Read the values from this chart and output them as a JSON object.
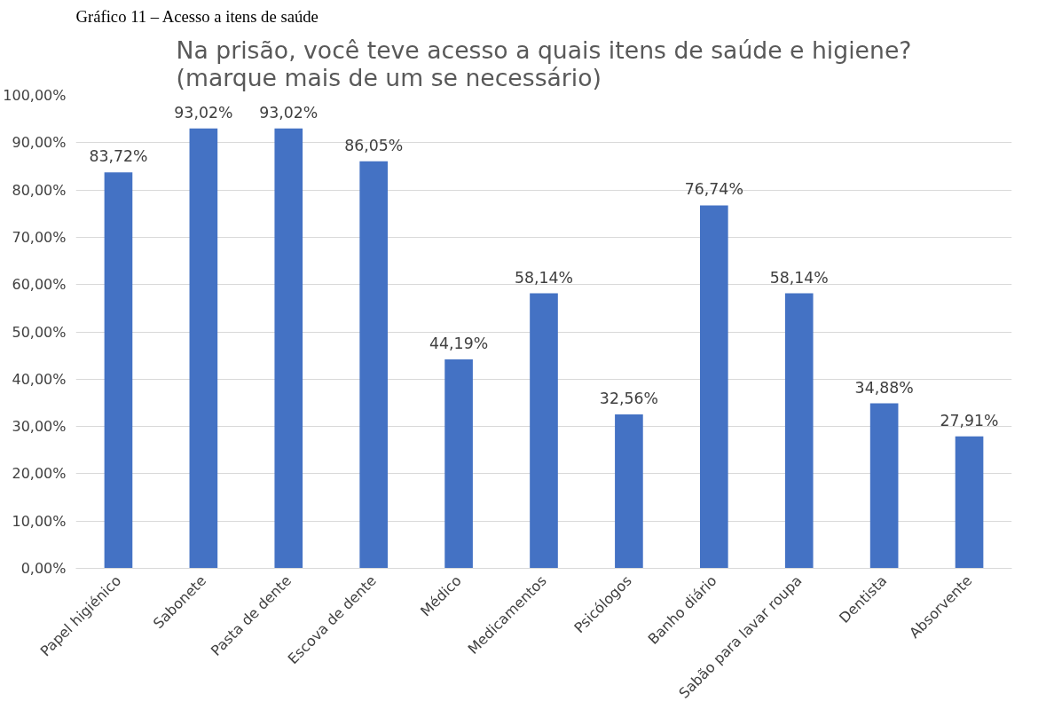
{
  "chart_data": {
    "type": "bar",
    "title": "Na prisão, você teve acesso a quais itens de saúde e higiene?\n(marque mais de um se necessário)",
    "annotations": [
      "Gráfico 11 – Acesso a itens de saúde"
    ],
    "categories": [
      "Papel higiénico",
      "Sabonete",
      "Pasta de dente",
      "Escova de dente",
      "Médico",
      "Medicamentos",
      "Psicólogos",
      "Banho diário",
      "Sabão para lavar roupa",
      "Dentista",
      "Absorvente"
    ],
    "values": [
      83.72,
      93.02,
      93.02,
      86.05,
      44.19,
      58.14,
      32.56,
      76.74,
      58.14,
      34.88,
      27.91
    ],
    "value_labels": [
      "83,72%",
      "93,02%",
      "93,02%",
      "86,05%",
      "44,19%",
      "58,14%",
      "32,56%",
      "76,74%",
      "58,14%",
      "34,88%",
      "27,91%"
    ],
    "color": "#4472c4",
    "ylim": [
      0,
      100
    ],
    "yticks": [
      {
        "value": 0,
        "label": "0,00%"
      },
      {
        "value": 10,
        "label": "10,00%"
      },
      {
        "value": 20,
        "label": "20,00%"
      },
      {
        "value": 30,
        "label": "30,00%"
      },
      {
        "value": 40,
        "label": "40,00%"
      },
      {
        "value": 50,
        "label": "50,00%"
      },
      {
        "value": 60,
        "label": "60,00%"
      },
      {
        "value": 70,
        "label": "70,00%"
      },
      {
        "value": 80,
        "label": "80,00%"
      },
      {
        "value": 90,
        "label": "90,00%"
      },
      {
        "value": 100,
        "label": "100,00%"
      }
    ],
    "grid": "y"
  }
}
